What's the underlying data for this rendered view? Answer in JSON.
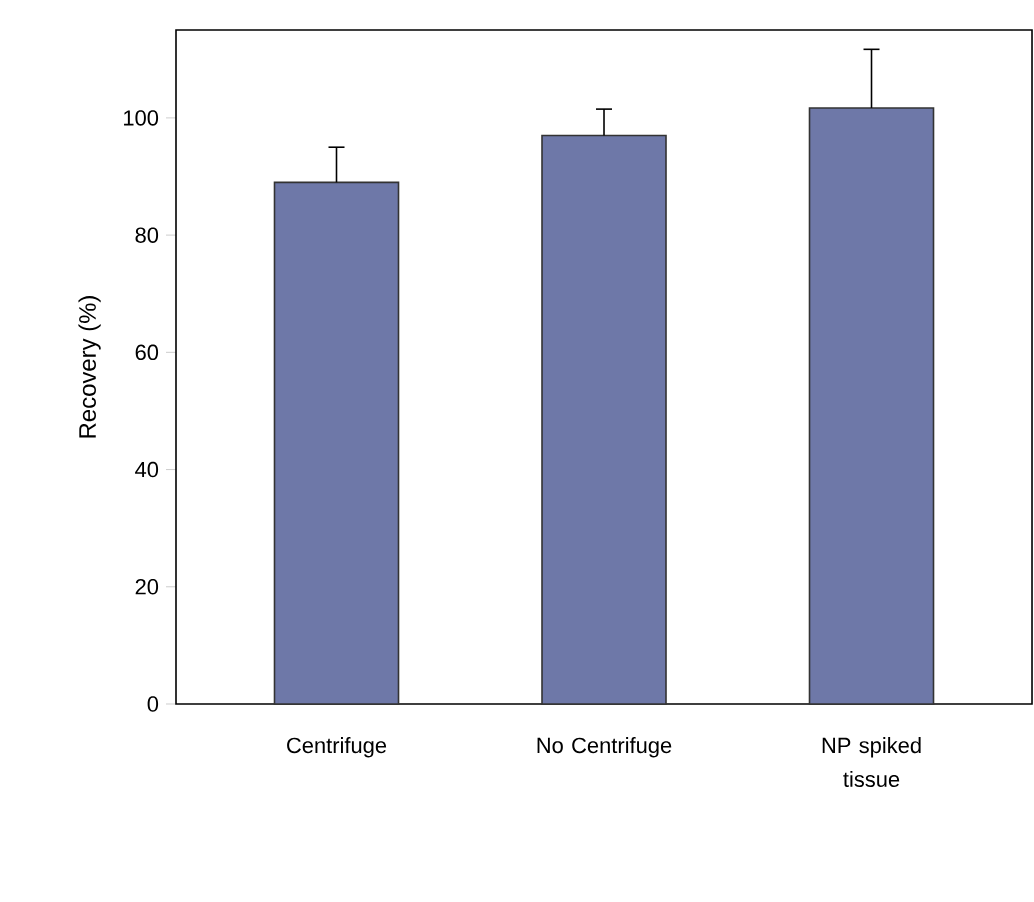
{
  "chart_data": {
    "type": "bar",
    "ylabel": "Recovery (%)",
    "categories": [
      "Centrifuge",
      "No Centrifuge",
      "NP spiked tissue"
    ],
    "values": [
      89,
      97,
      101.7
    ],
    "errors": [
      6,
      4.5,
      10
    ],
    "color": "#6e78a8",
    "ylim": [
      0,
      115
    ],
    "yticks": [
      0,
      20,
      40,
      60,
      80,
      100
    ]
  }
}
